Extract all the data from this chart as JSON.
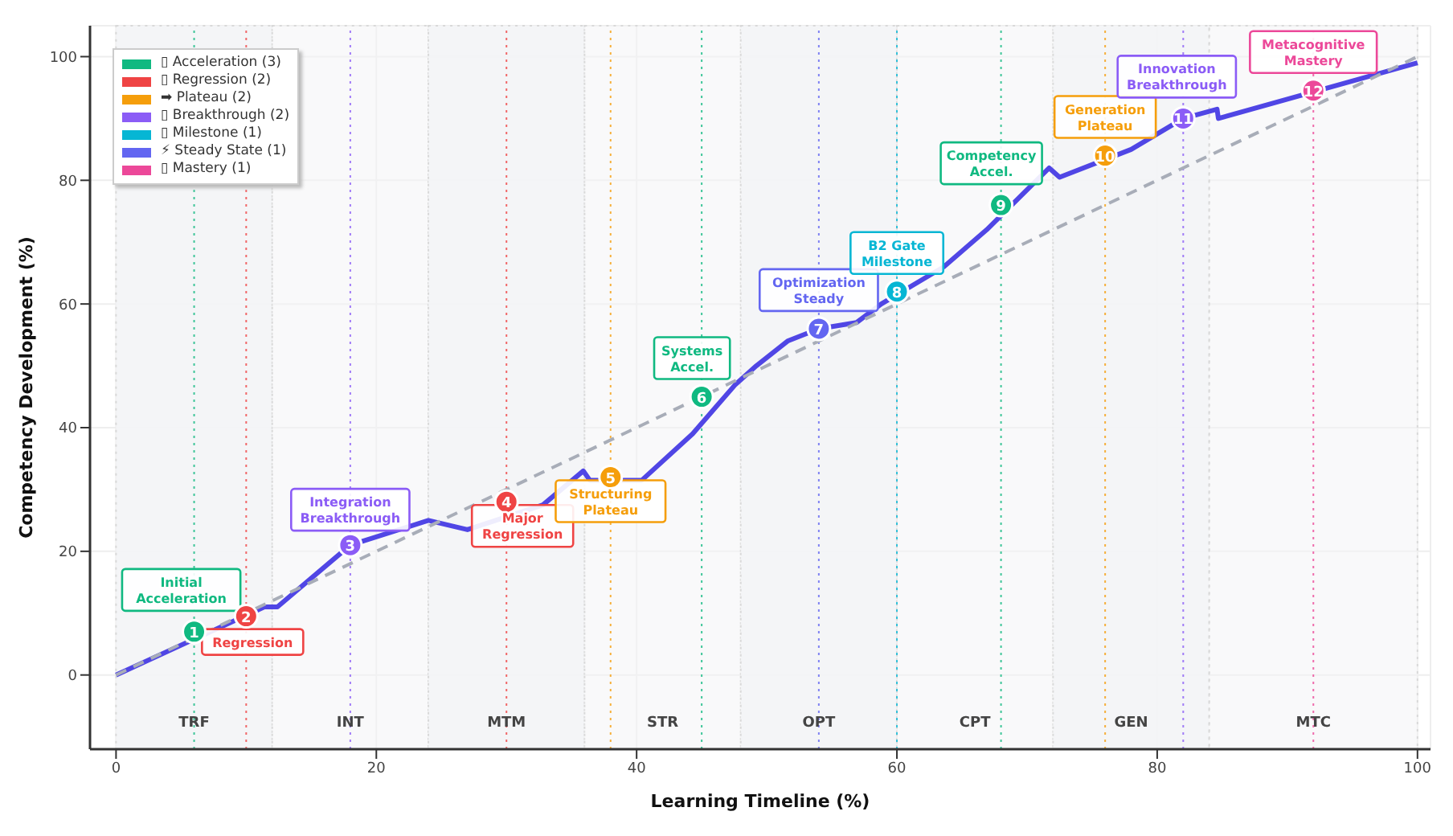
{
  "chart_data": {
    "type": "line",
    "xlabel": "Learning Timeline (%)",
    "ylabel": "Competency Development (%)",
    "xlim": [
      -2,
      101
    ],
    "xticks": [
      0,
      20,
      40,
      60,
      80,
      100
    ],
    "ylim": [
      -12,
      105
    ],
    "yticks": [
      0,
      20,
      40,
      60,
      80,
      100
    ],
    "grid": true,
    "legend": "top left",
    "series": [
      {
        "color": "#5046e5",
        "x": [
          0,
          11.4,
          12.4,
          18,
          24,
          27,
          32.8,
          35.9,
          36.4,
          40.4,
          44.3,
          47.6,
          49.2,
          51.6,
          54,
          56.9,
          58.8,
          63.6,
          66.9,
          71.7,
          72.5,
          78,
          82,
          84.6,
          84.7,
          100
        ],
        "values": [
          0,
          11,
          11,
          21,
          25,
          23.5,
          27.5,
          33,
          31.5,
          31.5,
          39,
          47,
          50,
          54,
          56,
          57,
          60,
          66,
          72,
          82,
          80.5,
          85,
          90,
          91.5,
          90,
          99
        ]
      },
      {
        "type": "line",
        "color": "#a8adb8",
        "line_style": "dashed",
        "x": [
          0,
          100
        ],
        "values": [
          0,
          100
        ]
      },
      {
        "type": "scatter",
        "name": "▯ Acceleration (3)",
        "color": "#10b981",
        "x": [
          6,
          45,
          68
        ],
        "values": [
          7,
          45,
          76
        ]
      },
      {
        "type": "scatter",
        "name": "▯ Regression (2)",
        "color": "#ef4444",
        "x": [
          10,
          30
        ],
        "values": [
          9.5,
          28
        ]
      },
      {
        "type": "scatter",
        "name": "➡ Plateau (2)",
        "color": "#f59e0b",
        "x": [
          38,
          76
        ],
        "values": [
          32,
          84
        ]
      },
      {
        "type": "scatter",
        "name": "▯ Breakthrough (2)",
        "color": "#8b5cf6",
        "x": [
          18,
          82
        ],
        "values": [
          21,
          90
        ]
      },
      {
        "type": "scatter",
        "name": "▯ Milestone (1)",
        "color": "#06b6d4",
        "x": [
          60
        ],
        "values": [
          62
        ]
      },
      {
        "type": "scatter",
        "name": "⚡ Steady State (1)",
        "color": "#6366f1",
        "x": [
          54
        ],
        "values": [
          56
        ]
      },
      {
        "type": "scatter",
        "name": "▯ Mastery (1)",
        "color": "#ec4899",
        "x": [
          92
        ],
        "values": [
          94.5
        ]
      }
    ],
    "annotations": [
      {
        "text": "Initial\nAcceleration",
        "x": 6,
        "y": 7
      },
      {
        "text": "Regression",
        "x": 10,
        "y": 9.5
      },
      {
        "text": "Integration\nBreakthrough",
        "x": 18,
        "y": 21
      },
      {
        "text": "Major\nRegression",
        "x": 30,
        "y": 28
      },
      {
        "text": "Structuring\nPlateau",
        "x": 38,
        "y": 32
      },
      {
        "text": "Systems\nAccel.",
        "x": 45,
        "y": 45
      },
      {
        "text": "Optimization\nSteady",
        "x": 54,
        "y": 56
      },
      {
        "text": "B2 Gate\nMilestone",
        "x": 60,
        "y": 62
      },
      {
        "text": "Competency\nAccel.",
        "x": 68,
        "y": 76
      },
      {
        "text": "Generation\nPlateau",
        "x": 76,
        "y": 84
      },
      {
        "text": "Innovation\nBreakthrough",
        "x": 82,
        "y": 90
      },
      {
        "text": "Metacognitive\nMastery",
        "x": 92,
        "y": 94.5
      },
      {
        "text": "1",
        "x": 6,
        "y": 7
      },
      {
        "text": "2",
        "x": 10,
        "y": 9.5
      },
      {
        "text": "3",
        "x": 18,
        "y": 21
      },
      {
        "text": "4",
        "x": 30,
        "y": 28
      },
      {
        "text": "5",
        "x": 38,
        "y": 32
      },
      {
        "text": "6",
        "x": 45,
        "y": 45
      },
      {
        "text": "7",
        "x": 54,
        "y": 56
      },
      {
        "text": "8",
        "x": 60,
        "y": 62
      },
      {
        "text": "9",
        "x": 68,
        "y": 76
      },
      {
        "text": "10",
        "x": 76,
        "y": 84
      },
      {
        "text": "11",
        "x": 82,
        "y": 90
      },
      {
        "text": "12",
        "x": 92,
        "y": 94.5
      }
    ],
    "bands": [
      {
        "axis": "x",
        "from": 0,
        "to": 12,
        "label": "TRF",
        "color": "#f3f4f6"
      },
      {
        "axis": "x",
        "from": 12,
        "to": 24,
        "label": "INT",
        "color": "#f3f4f6"
      },
      {
        "axis": "x",
        "from": 24,
        "to": 36,
        "label": "MTM",
        "color": "#f3f4f6"
      },
      {
        "axis": "x",
        "from": 36,
        "to": 48,
        "label": "STR",
        "color": "#f3f4f6"
      },
      {
        "axis": "x",
        "from": 48,
        "to": 60,
        "label": "OPT",
        "color": "#f3f4f6"
      },
      {
        "axis": "x",
        "from": 60,
        "to": 72,
        "label": "CPT",
        "color": "#f3f4f6"
      },
      {
        "axis": "x",
        "from": 72,
        "to": 84,
        "label": "GEN",
        "color": "#f3f4f6"
      },
      {
        "axis": "x",
        "from": 84,
        "to": 100,
        "label": "MTC",
        "color": "#f3f4f6"
      }
    ],
    "ref_lines": [
      {
        "axis": "x",
        "value": 6,
        "color": "#10b981",
        "line_style": "dotted"
      },
      {
        "axis": "x",
        "value": 10,
        "color": "#ef4444",
        "line_style": "dotted"
      },
      {
        "axis": "x",
        "value": 18,
        "color": "#8b5cf6",
        "line_style": "dotted"
      },
      {
        "axis": "x",
        "value": 30,
        "color": "#ef4444",
        "line_style": "dotted"
      },
      {
        "axis": "x",
        "value": 38,
        "color": "#f59e0b",
        "line_style": "dotted"
      },
      {
        "axis": "x",
        "value": 45,
        "color": "#10b981",
        "line_style": "dotted"
      },
      {
        "axis": "x",
        "value": 54,
        "color": "#6366f1",
        "line_style": "dotted"
      },
      {
        "axis": "x",
        "value": 60,
        "color": "#06b6d4",
        "line_style": "dotted"
      },
      {
        "axis": "x",
        "value": 68,
        "color": "#10b981",
        "line_style": "dotted"
      },
      {
        "axis": "x",
        "value": 76,
        "color": "#f59e0b",
        "line_style": "dotted"
      },
      {
        "axis": "x",
        "value": 82,
        "color": "#8b5cf6",
        "line_style": "dotted"
      },
      {
        "axis": "x",
        "value": 92,
        "color": "#ec4899",
        "line_style": "dotted"
      }
    ]
  }
}
